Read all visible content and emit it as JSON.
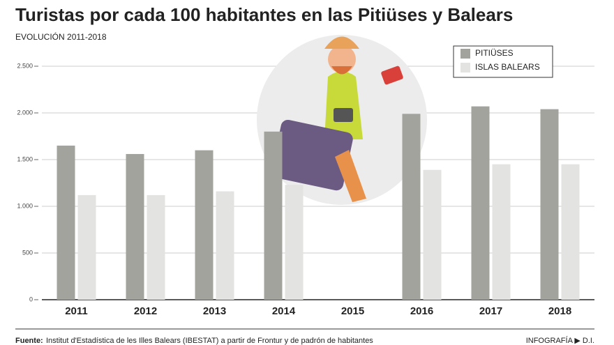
{
  "chart_data": {
    "type": "bar",
    "title": "Turistas por cada 100 habitantes en las Pitiüses y Balears",
    "subtitle": "EVOLUCIÓN 2011-2018",
    "categories": [
      "2011",
      "2012",
      "2013",
      "2014",
      "2015",
      "2016",
      "2017",
      "2018"
    ],
    "series": [
      {
        "name": "PITIÜSES",
        "color": "#a3a39e",
        "values": [
          1650,
          1560,
          1600,
          1800,
          null,
          1990,
          2070,
          2040
        ]
      },
      {
        "name": "ISLAS BALEARS",
        "color": "#e3e3e1",
        "values": [
          1120,
          1120,
          1160,
          1230,
          null,
          1390,
          1450,
          1450
        ]
      }
    ],
    "ylim": [
      0,
      2500
    ],
    "yticks": [
      0,
      500,
      {
        "value": 1000,
        "label": "1.000"
      },
      {
        "value": 1500,
        "label": "1.500"
      },
      {
        "value": 2000,
        "label": "2.000"
      },
      {
        "value": 2500,
        "label": "2.500"
      }
    ],
    "grid": true,
    "legend": "top-right",
    "source_label": "Fuente:",
    "source_text": "Institut d'Estadística de les Illes Balears (IBESTAT) a partir de Frontur y de padrón de habitantes",
    "credit": "INFOGRAFÍA ▶ D.I."
  }
}
